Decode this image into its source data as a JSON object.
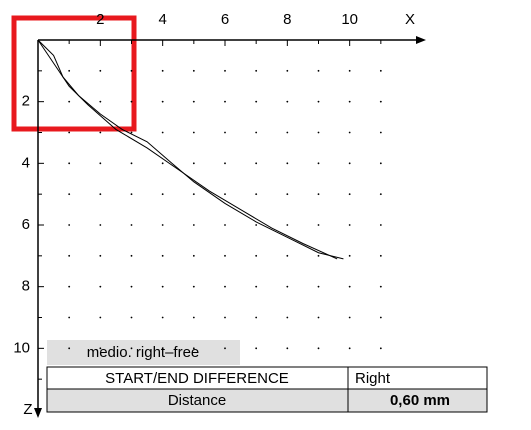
{
  "chart_data": {
    "type": "line",
    "xlabel": "X",
    "ylabel": "Z",
    "xlim": [
      0,
      12
    ],
    "ylim": [
      0,
      12
    ],
    "xticks": [
      2,
      4,
      6,
      8,
      10
    ],
    "yticks": [
      2,
      4,
      6,
      8,
      10
    ],
    "xminor": [
      1,
      3,
      5,
      7,
      9,
      11
    ],
    "yminor": [
      1,
      3,
      5,
      7,
      9,
      11
    ],
    "grid": "dotted",
    "y_inverted": true,
    "series": [
      {
        "color": "#000000",
        "x": [
          0,
          0.5,
          0.8,
          1.3,
          2,
          2.7,
          3.5,
          4.3,
          5,
          6,
          7,
          8,
          9,
          9.8
        ],
        "values": [
          0,
          0.5,
          1.2,
          1.8,
          2.4,
          2.9,
          3.3,
          4,
          4.6,
          5.3,
          5.9,
          6.4,
          6.9,
          7.1
        ]
      },
      {
        "color": "#000000",
        "x": [
          0,
          0.6,
          1,
          1.6,
          2.5,
          3.5,
          4.5,
          5.5,
          6.5,
          7.5,
          8.5,
          9.6
        ],
        "values": [
          0,
          0.9,
          1.5,
          2.1,
          2.9,
          3.5,
          4.2,
          4.9,
          5.5,
          6.1,
          6.6,
          7.1
        ]
      }
    ]
  },
  "note": "medio. right–free",
  "table": {
    "rows": [
      [
        "START/END DIFFERENCE",
        "Right"
      ],
      [
        "Distance",
        "0,60 mm"
      ]
    ]
  }
}
